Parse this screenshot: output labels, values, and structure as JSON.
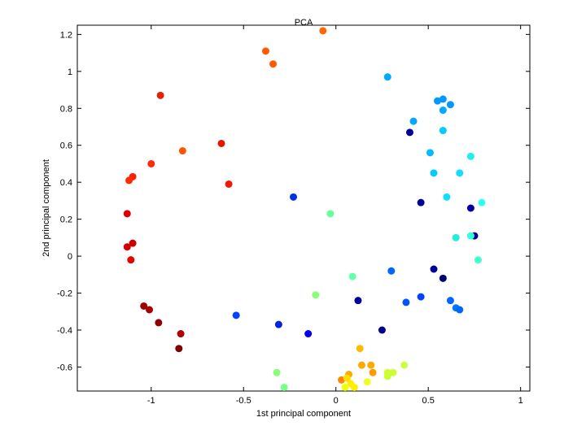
{
  "chart_data": {
    "type": "scatter",
    "title": "PCA",
    "xlabel": "1st principal component",
    "ylabel": "2nd principal component",
    "xlim": [
      -1.4,
      1.05
    ],
    "ylim": [
      -0.73,
      1.25
    ],
    "xticks": [
      -1,
      -0.5,
      0,
      0.5,
      1
    ],
    "xtick_labels": [
      "-1",
      "-0.5",
      "0",
      "0.5",
      "1"
    ],
    "yticks": [
      -0.6,
      -0.4,
      -0.2,
      0,
      0.2,
      0.4,
      0.6,
      0.8,
      1,
      1.2
    ],
    "ytick_labels": [
      "-0.6",
      "-0.4",
      "-0.2",
      "0",
      "0.2",
      "0.4",
      "0.6",
      "0.8",
      "1",
      "1.2"
    ],
    "grid": false,
    "legend": "none",
    "points": [
      {
        "x": -0.07,
        "y": 1.22,
        "color": "#ff6600"
      },
      {
        "x": -0.38,
        "y": 1.11,
        "color": "#ff5a00"
      },
      {
        "x": -0.34,
        "y": 1.04,
        "color": "#ff5a00"
      },
      {
        "x": -0.95,
        "y": 0.87,
        "color": "#e62000"
      },
      {
        "x": -0.62,
        "y": 0.61,
        "color": "#e61400"
      },
      {
        "x": -0.83,
        "y": 0.57,
        "color": "#ff5500"
      },
      {
        "x": -1.0,
        "y": 0.5,
        "color": "#ff2a00"
      },
      {
        "x": -1.1,
        "y": 0.43,
        "color": "#ff2200"
      },
      {
        "x": -1.12,
        "y": 0.41,
        "color": "#ff2a00"
      },
      {
        "x": -0.58,
        "y": 0.39,
        "color": "#f01a00"
      },
      {
        "x": -1.13,
        "y": 0.23,
        "color": "#e00000"
      },
      {
        "x": -1.1,
        "y": 0.07,
        "color": "#cc0000"
      },
      {
        "x": -1.13,
        "y": 0.05,
        "color": "#d40000"
      },
      {
        "x": -1.11,
        "y": -0.02,
        "color": "#e60000"
      },
      {
        "x": -1.04,
        "y": -0.27,
        "color": "#a00000"
      },
      {
        "x": -1.01,
        "y": -0.29,
        "color": "#a80000"
      },
      {
        "x": -0.96,
        "y": -0.36,
        "color": "#900000"
      },
      {
        "x": -0.84,
        "y": -0.42,
        "color": "#b00000"
      },
      {
        "x": -0.85,
        "y": -0.5,
        "color": "#800000"
      },
      {
        "x": -0.23,
        "y": 0.32,
        "color": "#0033dd"
      },
      {
        "x": -0.03,
        "y": 0.23,
        "color": "#66ff99"
      },
      {
        "x": -0.54,
        "y": -0.32,
        "color": "#0044ff"
      },
      {
        "x": -0.31,
        "y": -0.37,
        "color": "#0022dd"
      },
      {
        "x": -0.15,
        "y": -0.42,
        "color": "#0000ee"
      },
      {
        "x": -0.11,
        "y": -0.21,
        "color": "#88ff77"
      },
      {
        "x": -0.32,
        "y": -0.63,
        "color": "#88ff77"
      },
      {
        "x": -0.28,
        "y": -0.71,
        "color": "#77ff88"
      },
      {
        "x": 0.09,
        "y": -0.11,
        "color": "#66ffaa"
      },
      {
        "x": 0.12,
        "y": -0.24,
        "color": "#000099"
      },
      {
        "x": 0.3,
        "y": -0.08,
        "color": "#0066ff"
      },
      {
        "x": 0.25,
        "y": -0.4,
        "color": "#000088"
      },
      {
        "x": 0.38,
        "y": -0.25,
        "color": "#0055ff"
      },
      {
        "x": 0.46,
        "y": -0.22,
        "color": "#0044ff"
      },
      {
        "x": 0.53,
        "y": -0.07,
        "color": "#000099"
      },
      {
        "x": 0.58,
        "y": -0.12,
        "color": "#000077"
      },
      {
        "x": 0.62,
        "y": -0.24,
        "color": "#0066ff"
      },
      {
        "x": 0.65,
        "y": -0.28,
        "color": "#0077ff"
      },
      {
        "x": 0.67,
        "y": -0.29,
        "color": "#0066ff"
      },
      {
        "x": 0.46,
        "y": 0.29,
        "color": "#000099"
      },
      {
        "x": 0.73,
        "y": 0.26,
        "color": "#0000aa"
      },
      {
        "x": 0.75,
        "y": 0.11,
        "color": "#000088"
      },
      {
        "x": 0.73,
        "y": 0.11,
        "color": "#33ffdd"
      },
      {
        "x": 0.79,
        "y": 0.29,
        "color": "#33ffee"
      },
      {
        "x": 0.77,
        "y": -0.02,
        "color": "#44ffcc"
      },
      {
        "x": 0.65,
        "y": 0.1,
        "color": "#22eedd"
      },
      {
        "x": 0.6,
        "y": 0.32,
        "color": "#11ddff"
      },
      {
        "x": 0.53,
        "y": 0.45,
        "color": "#00ccff"
      },
      {
        "x": 0.67,
        "y": 0.45,
        "color": "#11ddff"
      },
      {
        "x": 0.73,
        "y": 0.54,
        "color": "#22eeee"
      },
      {
        "x": 0.51,
        "y": 0.56,
        "color": "#00bbff"
      },
      {
        "x": 0.58,
        "y": 0.68,
        "color": "#00ccff"
      },
      {
        "x": 0.4,
        "y": 0.67,
        "color": "#000099"
      },
      {
        "x": 0.42,
        "y": 0.73,
        "color": "#00aaff"
      },
      {
        "x": 0.58,
        "y": 0.79,
        "color": "#00aaff"
      },
      {
        "x": 0.55,
        "y": 0.84,
        "color": "#0099ff"
      },
      {
        "x": 0.58,
        "y": 0.85,
        "color": "#0099ff"
      },
      {
        "x": 0.62,
        "y": 0.82,
        "color": "#0099ff"
      },
      {
        "x": 0.28,
        "y": 0.97,
        "color": "#00aaff"
      },
      {
        "x": 0.13,
        "y": -0.5,
        "color": "#ffbb00"
      },
      {
        "x": 0.14,
        "y": -0.59,
        "color": "#ffaa00"
      },
      {
        "x": 0.19,
        "y": -0.59,
        "color": "#ffaa00"
      },
      {
        "x": 0.2,
        "y": -0.63,
        "color": "#ff9900"
      },
      {
        "x": 0.03,
        "y": -0.67,
        "color": "#ff8800"
      },
      {
        "x": 0.07,
        "y": -0.64,
        "color": "#ffaa00"
      },
      {
        "x": 0.06,
        "y": -0.66,
        "color": "#ffdd00"
      },
      {
        "x": 0.08,
        "y": -0.69,
        "color": "#ffee00"
      },
      {
        "x": 0.1,
        "y": -0.71,
        "color": "#ffee00"
      },
      {
        "x": 0.05,
        "y": -0.71,
        "color": "#eeff00"
      },
      {
        "x": 0.17,
        "y": -0.68,
        "color": "#eeff22"
      },
      {
        "x": 0.28,
        "y": -0.63,
        "color": "#ccff33"
      },
      {
        "x": 0.28,
        "y": -0.65,
        "color": "#ccff33"
      },
      {
        "x": 0.31,
        "y": -0.63,
        "color": "#ccff33"
      },
      {
        "x": 0.37,
        "y": -0.59,
        "color": "#ccff44"
      }
    ]
  }
}
